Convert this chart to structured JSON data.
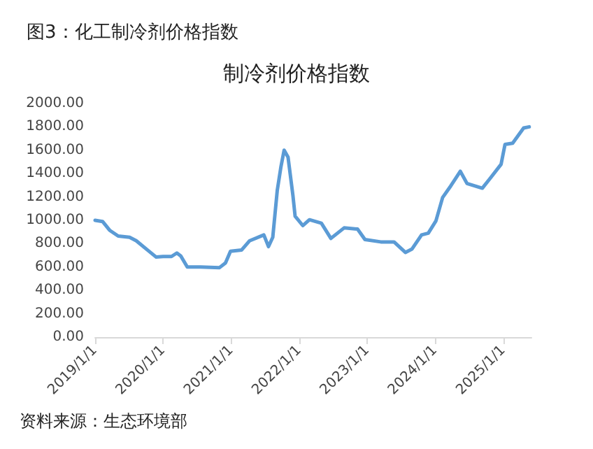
{
  "chart_data": {
    "type": "line",
    "title": "图3：化工制冷剂价格指数",
    "subtitle": "制冷剂价格指数",
    "annotations": [
      "资料来源：生态环境部"
    ],
    "x": [
      "2019-01-01",
      "2019-02-10",
      "2019-03-20",
      "2019-05-05",
      "2019-07-05",
      "2019-08-10",
      "2019-10-10",
      "2019-11-25",
      "2020-01-01",
      "2020-02-15",
      "2020-03-15",
      "2020-04-05",
      "2020-05-10",
      "2020-07-20",
      "2020-10-30",
      "2020-12-01",
      "2020-12-28",
      "2021-02-25",
      "2021-04-10",
      "2021-06-25",
      "2021-07-20",
      "2021-08-12",
      "2021-09-05",
      "2021-09-25",
      "2021-10-12",
      "2021-11-02",
      "2021-11-28",
      "2021-12-10",
      "2022-01-20",
      "2022-02-25",
      "2022-04-30",
      "2022-06-20",
      "2022-08-30",
      "2022-11-10",
      "2022-12-20",
      "2023-03-15",
      "2023-05-25",
      "2023-07-25",
      "2023-08-30",
      "2023-10-20",
      "2023-11-25",
      "2024-01-05",
      "2024-02-10",
      "2024-03-25",
      "2024-05-15",
      "2024-06-20",
      "2024-09-10",
      "2024-10-20",
      "2024-12-20",
      "2025-01-10",
      "2025-02-20",
      "2025-04-20",
      "2025-05-20"
    ],
    "series": [
      {
        "color": "#5b9bd5",
        "values": [
          1000,
          990,
          915,
          865,
          855,
          825,
          745,
          685,
          690,
          690,
          720,
          695,
          600,
          600,
          595,
          635,
          735,
          745,
          825,
          875,
          775,
          855,
          1255,
          1460,
          1600,
          1540,
          1215,
          1035,
          955,
          1005,
          975,
          845,
          935,
          925,
          835,
          815,
          815,
          725,
          755,
          875,
          890,
          995,
          1195,
          1295,
          1420,
          1315,
          1275,
          1355,
          1480,
          1650,
          1660,
          1790,
          1800
        ]
      }
    ],
    "xlim": [
      "2019-01-01",
      "2025-06-01"
    ],
    "xticks": [
      {
        "value": "2019-01-01",
        "label": "2019/1/1"
      },
      {
        "value": "2020-01-01",
        "label": "2020/1/1"
      },
      {
        "value": "2021-01-01",
        "label": "2021/1/1"
      },
      {
        "value": "2022-01-01",
        "label": "2022/1/1"
      },
      {
        "value": "2023-01-01",
        "label": "2023/1/1"
      },
      {
        "value": "2024-01-01",
        "label": "2024/1/1"
      },
      {
        "value": "2025-01-01",
        "label": "2025/1/1"
      }
    ],
    "ylim": [
      0,
      2000
    ],
    "yticks": [
      {
        "value": 0,
        "label": "0.00"
      },
      {
        "value": 200,
        "label": "200.00"
      },
      {
        "value": 400,
        "label": "400.00"
      },
      {
        "value": 600,
        "label": "600.00"
      },
      {
        "value": 800,
        "label": "800.00"
      },
      {
        "value": 1000,
        "label": "1000.00"
      },
      {
        "value": 1200,
        "label": "1200.00"
      },
      {
        "value": 1400,
        "label": "1400.00"
      },
      {
        "value": 1600,
        "label": "1600.00"
      },
      {
        "value": 1800,
        "label": "1800.00"
      },
      {
        "value": 2000,
        "label": "2000.00"
      }
    ],
    "marker": "none",
    "line_style": "solid",
    "grid": false
  }
}
